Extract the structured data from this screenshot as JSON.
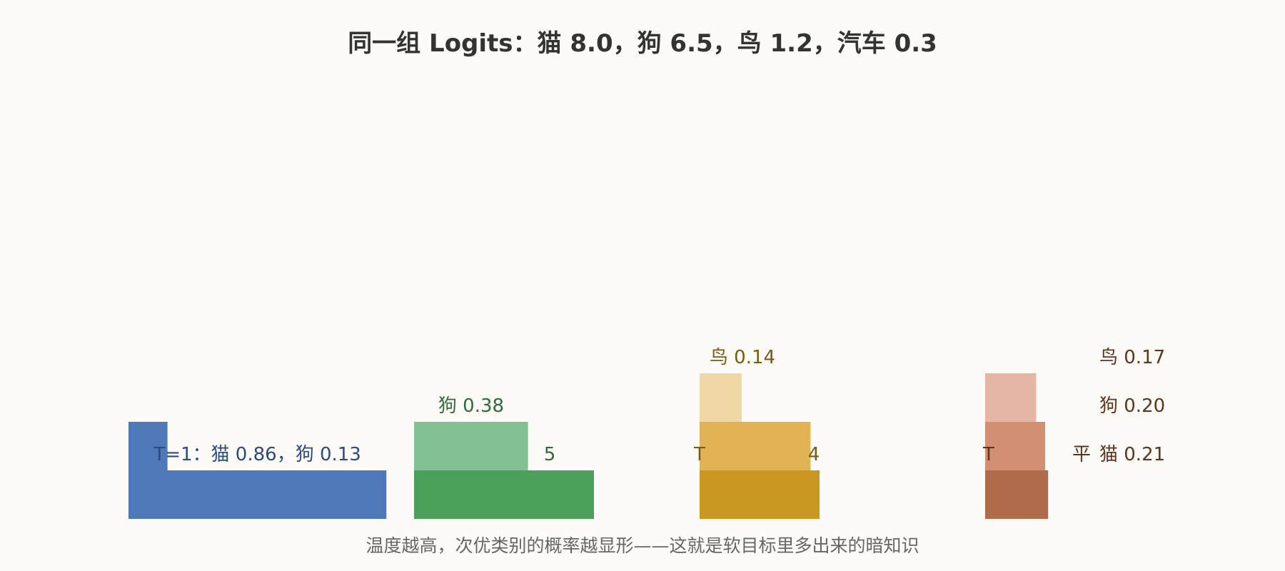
{
  "chart_data": {
    "type": "bar",
    "title": "同一组 Logits：猫 8.0，狗 6.5，鸟 1.2，汽车 0.3",
    "caption": "温度越高，次优类别的概率越显形——这就是软目标里多出来的暗知识",
    "categories": [
      "猫",
      "狗",
      "鸟"
    ],
    "groups": [
      {
        "values": [
          0.86,
          0.13,
          null
        ],
        "colors": [
          "#4e78b8",
          "#4e78b8",
          "#4e78b8"
        ],
        "text_color": "#2b4c80",
        "row_labels": [
          "T=1：猫 0.86，狗 0.13",
          "",
          ""
        ]
      },
      {
        "values": [
          0.6,
          0.38,
          null
        ],
        "colors": [
          "#4a9f5b",
          "#82c191",
          "#82c191"
        ],
        "text_color": "#2f6b3b",
        "row_labels": [
          "5",
          "狗 0.38",
          ""
        ]
      },
      {
        "values": [
          0.4,
          0.37,
          0.14
        ],
        "colors": [
          "#c99722",
          "#e1b354",
          "#f0d8a6"
        ],
        "text_color": "#7a5c10",
        "row_labels": [
          "4",
          "",
          "鸟 0.14"
        ]
      },
      {
        "values": [
          0.21,
          0.2,
          0.17
        ],
        "colors": [
          "#b06b4b",
          "#d38f73",
          "#e6b6a4"
        ],
        "text_color": "#5e3520",
        "row_labels": [
          "猫 0.21",
          "狗 0.20",
          "鸟 0.17"
        ],
        "partial_labels": [
          "T",
          "平"
        ]
      }
    ]
  }
}
